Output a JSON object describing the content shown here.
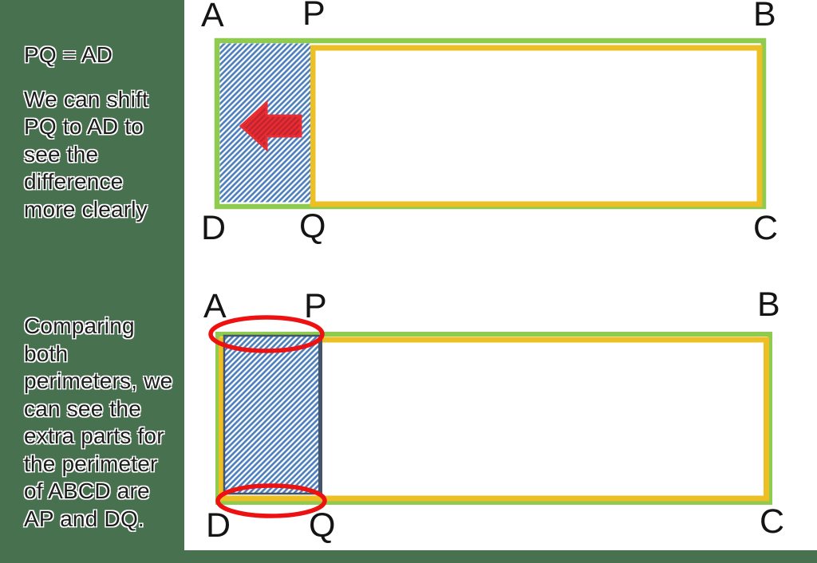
{
  "colors": {
    "background": "#487150",
    "panel": "#ffffff",
    "shape_green": "#8ecb4f",
    "shape_yellow": "#ecc024",
    "hatch_blue": "#4f81bd",
    "navy": "#44546a",
    "arrow_red": "#ea2d32",
    "arrow_red_dark": "#c1242e",
    "ellipse_red": "#ee1111",
    "text": "#1c1c1c",
    "label": "#141414"
  },
  "left_notes": {
    "top_heading": "PQ = AD",
    "top_lines": [
      "We can shift",
      "PQ to AD to",
      "see the",
      "difference",
      "more clearly"
    ],
    "bottom_lines": [
      "Comparing",
      "both",
      "perimeters, we",
      "can see the",
      "extra parts for",
      "the perimeter",
      "of ABCD are",
      "AP and DQ."
    ]
  },
  "diagram_top": {
    "labels": {
      "a": "A",
      "p": "P",
      "b": "B",
      "d": "D",
      "q": "Q",
      "c": "C"
    }
  },
  "diagram_bottom": {
    "labels": {
      "a": "A",
      "p": "P",
      "b": "B",
      "d": "D",
      "q": "Q",
      "c": "C"
    }
  }
}
